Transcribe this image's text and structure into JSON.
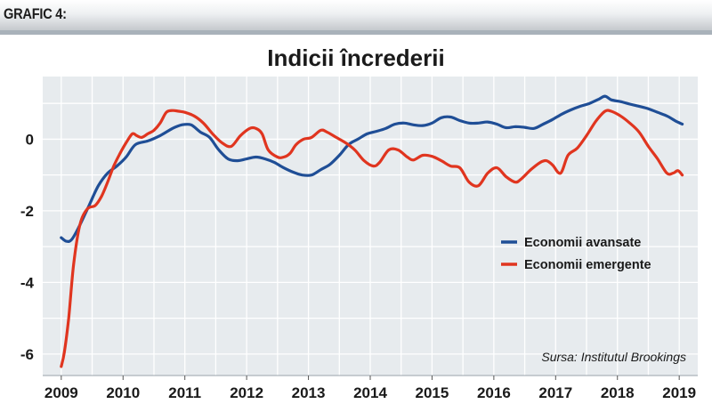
{
  "header": {
    "label": "GRAFIC 4:"
  },
  "source": "Sursa: Institutul Brookings",
  "colors": {
    "advanced": "#1f4e96",
    "emerging": "#e0351f",
    "plot_bg": "#e7ebee",
    "grid": "#ffffff"
  },
  "chart_data": {
    "type": "line",
    "title": "Indicii încrederii",
    "xlabel": "",
    "ylabel": "",
    "xlim": [
      2008.7,
      2019.3
    ],
    "ylim": [
      -6.6,
      1.75
    ],
    "x_ticks": [
      2009,
      2010,
      2011,
      2012,
      2013,
      2014,
      2015,
      2016,
      2017,
      2018,
      2019
    ],
    "x_tick_labels": [
      "2009",
      "2010",
      "2011",
      "2012",
      "2013",
      "2014",
      "2015",
      "2016",
      "2017",
      "2018",
      "2019"
    ],
    "y_ticks": [
      -6,
      -4,
      -2,
      0
    ],
    "y_tick_labels": [
      "-6",
      "-4",
      "-2",
      "0"
    ],
    "grid": true,
    "legend_position": "right",
    "series": [
      {
        "name": "Economii avansate",
        "color": "#1f4e96",
        "x": [
          2009.0,
          2009.08,
          2009.17,
          2009.3,
          2009.45,
          2009.6,
          2009.75,
          2009.9,
          2010.05,
          2010.2,
          2010.4,
          2010.6,
          2010.8,
          2010.95,
          2011.1,
          2011.25,
          2011.4,
          2011.55,
          2011.7,
          2011.85,
          2012.0,
          2012.15,
          2012.3,
          2012.45,
          2012.6,
          2012.75,
          2012.9,
          2013.05,
          2013.2,
          2013.35,
          2013.5,
          2013.65,
          2013.8,
          2013.95,
          2014.1,
          2014.25,
          2014.4,
          2014.55,
          2014.7,
          2014.85,
          2015.0,
          2015.15,
          2015.3,
          2015.45,
          2015.6,
          2015.75,
          2015.9,
          2016.05,
          2016.2,
          2016.35,
          2016.5,
          2016.65,
          2016.8,
          2016.95,
          2017.1,
          2017.25,
          2017.4,
          2017.55,
          2017.7,
          2017.8,
          2017.9,
          2018.05,
          2018.2,
          2018.35,
          2018.5,
          2018.65,
          2018.8,
          2018.95,
          2019.05
        ],
        "values": [
          -2.75,
          -2.85,
          -2.8,
          -2.4,
          -1.85,
          -1.3,
          -0.95,
          -0.75,
          -0.5,
          -0.15,
          -0.05,
          0.1,
          0.3,
          0.4,
          0.4,
          0.2,
          0.05,
          -0.3,
          -0.55,
          -0.6,
          -0.55,
          -0.5,
          -0.55,
          -0.65,
          -0.8,
          -0.92,
          -1.0,
          -1.0,
          -0.85,
          -0.7,
          -0.45,
          -0.15,
          0.0,
          0.15,
          0.22,
          0.3,
          0.42,
          0.45,
          0.4,
          0.38,
          0.45,
          0.6,
          0.62,
          0.52,
          0.45,
          0.45,
          0.48,
          0.42,
          0.32,
          0.35,
          0.33,
          0.3,
          0.42,
          0.55,
          0.7,
          0.82,
          0.92,
          1.0,
          1.12,
          1.2,
          1.1,
          1.05,
          0.98,
          0.92,
          0.85,
          0.75,
          0.65,
          0.5,
          0.42
        ]
      },
      {
        "name": "Economii emergente",
        "color": "#e0351f",
        "x": [
          2009.0,
          2009.05,
          2009.12,
          2009.2,
          2009.3,
          2009.42,
          2009.55,
          2009.65,
          2009.75,
          2009.85,
          2009.95,
          2010.05,
          2010.15,
          2010.22,
          2010.3,
          2010.4,
          2010.5,
          2010.6,
          2010.7,
          2010.8,
          2010.9,
          2011.0,
          2011.15,
          2011.3,
          2011.45,
          2011.6,
          2011.75,
          2011.9,
          2012.05,
          2012.15,
          2012.25,
          2012.35,
          2012.5,
          2012.6,
          2012.7,
          2012.8,
          2012.92,
          2013.05,
          2013.2,
          2013.3,
          2013.45,
          2013.6,
          2013.75,
          2013.9,
          2014.05,
          2014.15,
          2014.3,
          2014.45,
          2014.6,
          2014.7,
          2014.85,
          2015.0,
          2015.15,
          2015.3,
          2015.45,
          2015.6,
          2015.75,
          2015.9,
          2016.05,
          2016.2,
          2016.35,
          2016.45,
          2016.6,
          2016.75,
          2016.85,
          2016.95,
          2017.08,
          2017.2,
          2017.35,
          2017.5,
          2017.65,
          2017.8,
          2017.9,
          2018.05,
          2018.2,
          2018.35,
          2018.5,
          2018.65,
          2018.8,
          2018.9,
          2018.98,
          2019.05
        ],
        "values": [
          -6.35,
          -5.95,
          -5.0,
          -3.5,
          -2.4,
          -1.95,
          -1.85,
          -1.6,
          -1.2,
          -0.75,
          -0.4,
          -0.1,
          0.15,
          0.1,
          0.05,
          0.15,
          0.25,
          0.45,
          0.75,
          0.8,
          0.78,
          0.75,
          0.65,
          0.45,
          0.15,
          -0.1,
          -0.2,
          0.1,
          0.3,
          0.3,
          0.15,
          -0.3,
          -0.5,
          -0.5,
          -0.4,
          -0.15,
          0.0,
          0.05,
          0.25,
          0.2,
          0.05,
          -0.1,
          -0.3,
          -0.6,
          -0.75,
          -0.65,
          -0.3,
          -0.3,
          -0.5,
          -0.58,
          -0.45,
          -0.48,
          -0.6,
          -0.75,
          -0.8,
          -1.2,
          -1.3,
          -0.95,
          -0.8,
          -1.05,
          -1.2,
          -1.1,
          -0.85,
          -0.65,
          -0.6,
          -0.72,
          -0.95,
          -0.45,
          -0.25,
          0.1,
          0.5,
          0.78,
          0.78,
          0.65,
          0.45,
          0.2,
          -0.2,
          -0.55,
          -0.95,
          -0.95,
          -0.88,
          -1.0
        ]
      }
    ]
  }
}
